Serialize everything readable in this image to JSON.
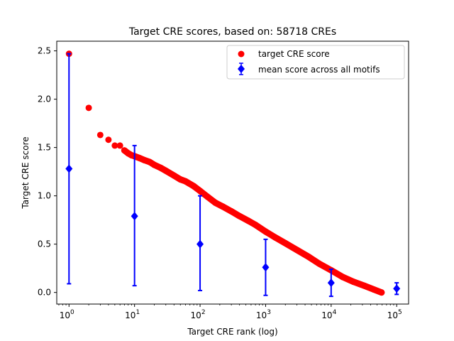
{
  "chart_data": {
    "type": "scatter",
    "title": "Target CRE scores, based on: 58718 CREs",
    "xlabel": "Target CRE rank (log)",
    "ylabel": "Target CRE score",
    "xscale": "log",
    "xlim": [
      0.65,
      152000
    ],
    "ylim": [
      -0.12,
      2.6
    ],
    "x_ticks": [
      {
        "value": 1,
        "label": "10",
        "exp": "0"
      },
      {
        "value": 10,
        "label": "10",
        "exp": "1"
      },
      {
        "value": 100,
        "label": "10",
        "exp": "2"
      },
      {
        "value": 1000,
        "label": "10",
        "exp": "3"
      },
      {
        "value": 10000,
        "label": "10",
        "exp": "4"
      },
      {
        "value": 100000,
        "label": "10",
        "exp": "5"
      }
    ],
    "y_ticks": [
      {
        "value": 0.0,
        "label": "0.0"
      },
      {
        "value": 0.5,
        "label": "0.5"
      },
      {
        "value": 1.0,
        "label": "1.0"
      },
      {
        "value": 1.5,
        "label": "1.5"
      },
      {
        "value": 2.0,
        "label": "2.0"
      },
      {
        "value": 2.5,
        "label": "2.5"
      }
    ],
    "grid": false,
    "legend_position": "top-right",
    "series": [
      {
        "name": "target CRE score",
        "kind": "scatter",
        "color": "#ff0000",
        "points": [
          [
            1,
            2.47
          ],
          [
            2,
            1.91
          ],
          [
            3,
            1.63
          ],
          [
            4,
            1.58
          ],
          [
            5,
            1.52
          ],
          [
            6,
            1.52
          ],
          [
            7,
            1.47
          ],
          [
            8,
            1.44
          ],
          [
            9,
            1.42
          ],
          [
            10,
            1.41
          ],
          [
            12,
            1.39
          ],
          [
            14,
            1.37
          ],
          [
            17,
            1.35
          ],
          [
            20,
            1.32
          ],
          [
            25,
            1.29
          ],
          [
            30,
            1.26
          ],
          [
            40,
            1.21
          ],
          [
            50,
            1.17
          ],
          [
            60,
            1.15
          ],
          [
            80,
            1.1
          ],
          [
            100,
            1.05
          ],
          [
            130,
            0.99
          ],
          [
            170,
            0.93
          ],
          [
            220,
            0.89
          ],
          [
            300,
            0.84
          ],
          [
            400,
            0.79
          ],
          [
            550,
            0.74
          ],
          [
            700,
            0.7
          ],
          [
            1000,
            0.63
          ],
          [
            1400,
            0.57
          ],
          [
            2000,
            0.51
          ],
          [
            3000,
            0.44
          ],
          [
            4500,
            0.37
          ],
          [
            6500,
            0.3
          ],
          [
            10000,
            0.23
          ],
          [
            15000,
            0.16
          ],
          [
            22000,
            0.11
          ],
          [
            32000,
            0.07
          ],
          [
            45000,
            0.03
          ],
          [
            58718,
            0.0
          ]
        ]
      },
      {
        "name": "mean score across all motifs",
        "kind": "errorbar",
        "color": "#0000ff",
        "points": [
          {
            "x": 1,
            "y": 1.28,
            "low": 0.09,
            "high": 2.47
          },
          {
            "x": 10,
            "y": 0.79,
            "low": 0.07,
            "high": 1.52
          },
          {
            "x": 100,
            "y": 0.5,
            "low": 0.02,
            "high": 1.0
          },
          {
            "x": 1000,
            "y": 0.26,
            "low": -0.03,
            "high": 0.55
          },
          {
            "x": 10000,
            "y": 0.1,
            "low": -0.04,
            "high": 0.24
          },
          {
            "x": 100000,
            "y": 0.04,
            "low": -0.02,
            "high": 0.1
          }
        ]
      }
    ]
  }
}
